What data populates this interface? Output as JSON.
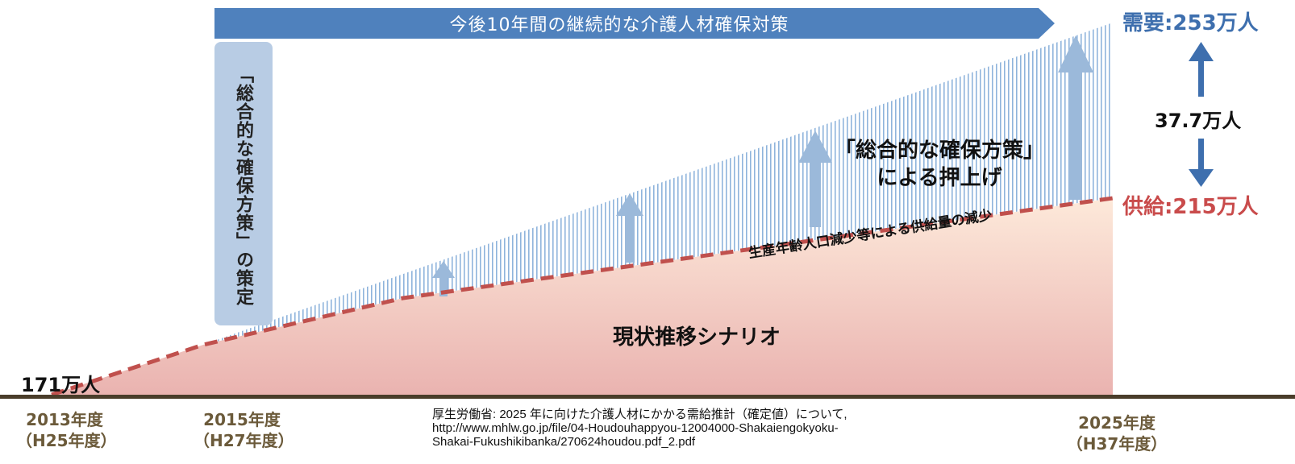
{
  "banner": {
    "text": "今後10年間の継続的な介護人材確保対策"
  },
  "strategy_box": {
    "text": "「総合的な確保方策」の策定"
  },
  "demand_label": "需要:253万人",
  "supply_label": "供給:215万人",
  "gap_label": "37.7万人",
  "start_label": "171万人",
  "boost_label": {
    "line1": "「総合的な確保方策」",
    "line2": "による押上げ"
  },
  "decline_label": "生産年齢人口減少等による供給量の減少",
  "scenario_label": "現状推移シナリオ",
  "x_axis": [
    {
      "year": "2013年度",
      "era": "（H25年度）"
    },
    {
      "year": "2015年度",
      "era": "（H27年度）"
    },
    {
      "year": "2025年度",
      "era": "（H37年度）"
    }
  ],
  "source": {
    "line1": "厚生労働省: 2025 年に向けた介護人材にかかる需給推計（確定値）について,",
    "line2": "http://www.mhlw.go.jp/file/04-Houdouhappyou-12004000-Shakaiengokyoku-",
    "line3": "Shakai-Fukushikibanka/270624houdou.pdf_2.pdf"
  },
  "colors": {
    "banner": "#4f81bd",
    "strategy_box": "#b8cce4",
    "demand": "#3e6fae",
    "supply": "#c94b4b",
    "hatch": "#8fb4dc",
    "arrow": "#9bb9da",
    "dashed_line": "#c0504d",
    "axis": "#4a3d2a"
  },
  "icons": {
    "gap_arrows": "up-down-arrow-icon",
    "boost_arrows": "up-arrow-icon"
  }
}
